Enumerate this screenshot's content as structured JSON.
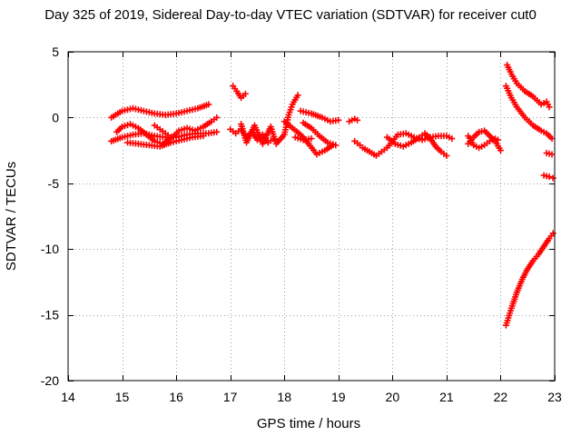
{
  "chart_data": {
    "type": "scatter",
    "title": "Day 325 of 2019, Sidereal Day-to-day VTEC variation (SDTVAR) for receiver cut0",
    "xlabel": "GPS time / hours",
    "ylabel": "SDTVAR / TECUs",
    "xlim": [
      14,
      23
    ],
    "ylim": [
      -20,
      5
    ],
    "xticks": [
      14,
      15,
      16,
      17,
      18,
      19,
      20,
      21,
      22,
      23
    ],
    "yticks": [
      -20,
      -15,
      -10,
      -5,
      0,
      5
    ],
    "grid": true,
    "marker": "plus",
    "series": [
      {
        "name": "SDTVAR",
        "color": "#ff0000",
        "points": [
          [
            14.8,
            0.0
          ],
          [
            15.0,
            0.5
          ],
          [
            15.2,
            0.7
          ],
          [
            15.4,
            0.5
          ],
          [
            15.6,
            0.3
          ],
          [
            15.8,
            0.2
          ],
          [
            16.0,
            0.3
          ],
          [
            16.2,
            0.5
          ],
          [
            16.4,
            0.7
          ],
          [
            16.6,
            1.0
          ],
          [
            14.8,
            -1.8
          ],
          [
            15.0,
            -1.5
          ],
          [
            15.2,
            -1.3
          ],
          [
            15.4,
            -1.2
          ],
          [
            15.6,
            -1.4
          ],
          [
            15.8,
            -1.5
          ],
          [
            16.0,
            -1.5
          ],
          [
            16.2,
            -1.3
          ],
          [
            16.4,
            -1.2
          ],
          [
            16.6,
            -1.2
          ],
          [
            16.75,
            -1.1
          ],
          [
            14.9,
            -1.1
          ],
          [
            15.0,
            -0.7
          ],
          [
            15.15,
            -0.5
          ],
          [
            15.3,
            -0.8
          ],
          [
            15.45,
            -1.3
          ],
          [
            15.6,
            -1.8
          ],
          [
            15.75,
            -2.0
          ],
          [
            15.9,
            -1.6
          ],
          [
            16.05,
            -1.0
          ],
          [
            16.2,
            -0.8
          ],
          [
            16.35,
            -1.0
          ],
          [
            16.5,
            -0.7
          ],
          [
            16.65,
            -0.3
          ],
          [
            16.75,
            0.0
          ],
          [
            15.1,
            -1.9
          ],
          [
            15.3,
            -2.0
          ],
          [
            15.5,
            -2.1
          ],
          [
            15.7,
            -2.2
          ],
          [
            15.9,
            -1.9
          ],
          [
            16.1,
            -1.7
          ],
          [
            16.3,
            -1.5
          ],
          [
            16.5,
            -1.4
          ],
          [
            15.6,
            -0.6
          ],
          [
            15.7,
            -0.9
          ],
          [
            15.8,
            -1.2
          ],
          [
            15.9,
            -1.5
          ],
          [
            17.0,
            -0.9
          ],
          [
            17.1,
            -1.2
          ],
          [
            17.2,
            -0.9
          ],
          [
            17.3,
            -1.5
          ],
          [
            17.4,
            -1.1
          ],
          [
            17.5,
            -1.7
          ],
          [
            17.6,
            -1.3
          ],
          [
            17.7,
            -1.9
          ],
          [
            17.8,
            -1.6
          ],
          [
            17.05,
            2.4
          ],
          [
            17.12,
            2.0
          ],
          [
            17.2,
            1.5
          ],
          [
            17.28,
            1.8
          ],
          [
            17.2,
            -0.5
          ],
          [
            17.3,
            -1.9
          ],
          [
            17.45,
            -0.6
          ],
          [
            17.6,
            -2.0
          ],
          [
            17.75,
            -0.7
          ],
          [
            17.85,
            -2.0
          ],
          [
            18.0,
            -1.3
          ],
          [
            18.08,
            0.2
          ],
          [
            18.15,
            1.0
          ],
          [
            18.25,
            1.7
          ],
          [
            18.0,
            -0.3
          ],
          [
            18.15,
            -0.8
          ],
          [
            18.3,
            -1.3
          ],
          [
            18.45,
            -2.0
          ],
          [
            18.6,
            -2.8
          ],
          [
            18.75,
            -2.5
          ],
          [
            18.9,
            -2.1
          ],
          [
            18.3,
            0.5
          ],
          [
            18.5,
            0.3
          ],
          [
            18.7,
            0.0
          ],
          [
            18.85,
            -0.3
          ],
          [
            19.0,
            -0.2
          ],
          [
            18.35,
            -0.4
          ],
          [
            18.5,
            -0.8
          ],
          [
            18.65,
            -1.4
          ],
          [
            18.8,
            -1.9
          ],
          [
            18.95,
            -2.1
          ],
          [
            18.2,
            -1.5
          ],
          [
            18.35,
            -1.7
          ],
          [
            18.5,
            -1.6
          ],
          [
            19.2,
            -0.3
          ],
          [
            19.3,
            -0.1
          ],
          [
            19.35,
            -0.2
          ],
          [
            19.3,
            -1.8
          ],
          [
            19.4,
            -2.1
          ],
          [
            19.45,
            -2.3
          ],
          [
            19.7,
            -2.9
          ],
          [
            19.8,
            -2.6
          ],
          [
            19.9,
            -2.3
          ],
          [
            20.0,
            -1.8
          ],
          [
            20.1,
            -1.3
          ],
          [
            20.25,
            -1.2
          ],
          [
            20.4,
            -1.5
          ],
          [
            20.55,
            -1.7
          ],
          [
            20.7,
            -1.5
          ],
          [
            20.85,
            -1.4
          ],
          [
            21.0,
            -1.4
          ],
          [
            21.1,
            -1.6
          ],
          [
            19.9,
            -1.5
          ],
          [
            20.05,
            -2.0
          ],
          [
            20.2,
            -2.2
          ],
          [
            20.35,
            -1.9
          ],
          [
            20.5,
            -1.5
          ],
          [
            20.6,
            -1.2
          ],
          [
            20.7,
            -1.6
          ],
          [
            20.8,
            -2.2
          ],
          [
            20.9,
            -2.6
          ],
          [
            21.0,
            -2.9
          ],
          [
            21.4,
            -2.0
          ],
          [
            21.5,
            -1.5
          ],
          [
            21.6,
            -1.1
          ],
          [
            21.7,
            -1.0
          ],
          [
            21.8,
            -1.4
          ],
          [
            21.9,
            -1.8
          ],
          [
            22.0,
            -2.5
          ],
          [
            21.4,
            -1.4
          ],
          [
            21.5,
            -2.1
          ],
          [
            21.6,
            -2.3
          ],
          [
            21.7,
            -2.1
          ],
          [
            21.8,
            -1.8
          ],
          [
            21.9,
            -1.6
          ],
          [
            21.95,
            -1.7
          ],
          [
            22.12,
            4.0
          ],
          [
            22.2,
            3.3
          ],
          [
            22.3,
            2.6
          ],
          [
            22.45,
            2.0
          ],
          [
            22.6,
            1.6
          ],
          [
            22.75,
            1.0
          ],
          [
            22.85,
            1.2
          ],
          [
            22.9,
            0.8
          ],
          [
            22.1,
            2.4
          ],
          [
            22.2,
            1.5
          ],
          [
            22.3,
            0.8
          ],
          [
            22.45,
            0.0
          ],
          [
            22.6,
            -0.6
          ],
          [
            22.75,
            -1.0
          ],
          [
            22.85,
            -1.2
          ],
          [
            22.95,
            -1.6
          ],
          [
            22.85,
            -2.7
          ],
          [
            22.95,
            -2.8
          ],
          [
            22.8,
            -4.4
          ],
          [
            22.9,
            -4.5
          ],
          [
            22.97,
            -4.6
          ],
          [
            22.1,
            -15.8
          ],
          [
            22.2,
            -14.5
          ],
          [
            22.3,
            -13.3
          ],
          [
            22.4,
            -12.3
          ],
          [
            22.5,
            -11.5
          ],
          [
            22.6,
            -10.9
          ],
          [
            22.7,
            -10.4
          ],
          [
            22.8,
            -9.8
          ],
          [
            22.9,
            -9.2
          ],
          [
            22.97,
            -8.8
          ]
        ]
      }
    ]
  }
}
